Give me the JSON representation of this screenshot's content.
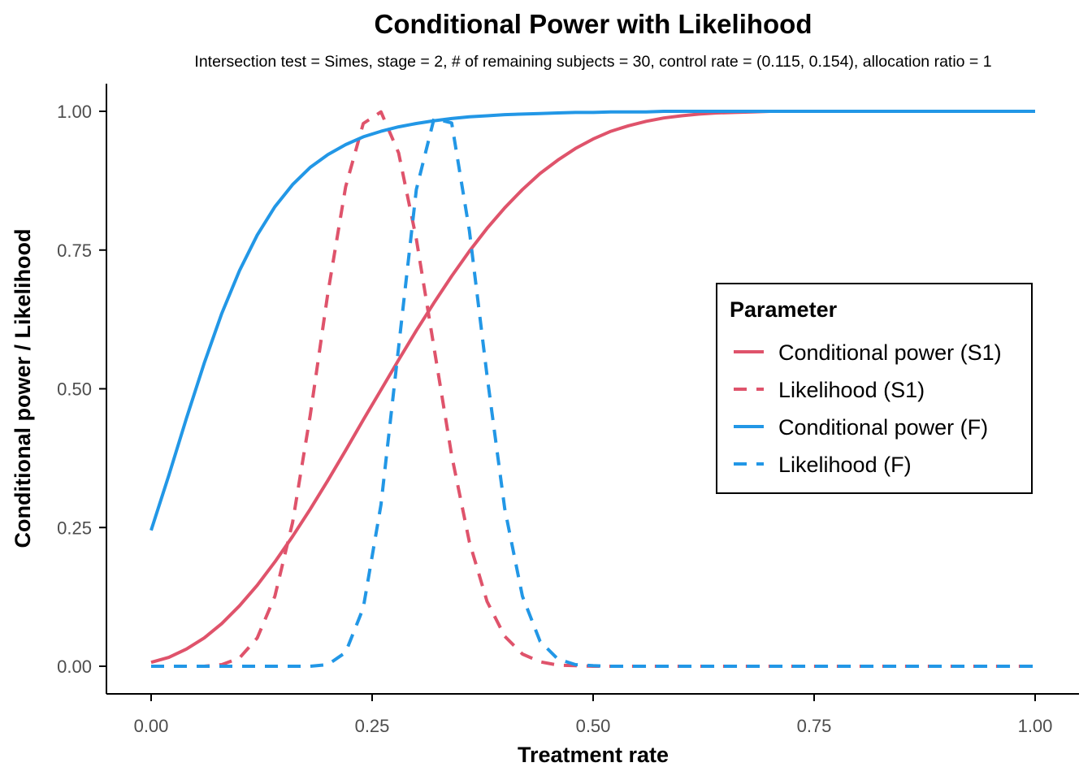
{
  "chart_data": {
    "type": "line",
    "title": "Conditional Power with Likelihood",
    "subtitle": "Intersection test = Simes, stage = 2, # of remaining subjects = 30, control rate = (0.115, 0.154), allocation ratio = 1",
    "xlabel": "Treatment rate",
    "ylabel": "Conditional power / Likelihood",
    "xlim": [
      0,
      1
    ],
    "ylim": [
      0,
      1
    ],
    "x_ticks": [
      "0.00",
      "0.25",
      "0.50",
      "0.75",
      "1.00"
    ],
    "y_ticks": [
      "0.00",
      "0.25",
      "0.50",
      "0.75",
      "1.00"
    ],
    "grid": false,
    "legend": {
      "title": "Parameter",
      "position": "right"
    },
    "x": [
      0.0,
      0.02,
      0.04,
      0.06,
      0.08,
      0.1,
      0.12,
      0.14,
      0.16,
      0.18,
      0.2,
      0.22,
      0.24,
      0.26,
      0.28,
      0.3,
      0.32,
      0.34,
      0.36,
      0.38,
      0.4,
      0.42,
      0.44,
      0.46,
      0.48,
      0.5,
      0.52,
      0.54,
      0.56,
      0.58,
      0.6,
      0.62,
      0.64,
      0.66,
      0.68,
      0.7,
      0.72,
      0.74,
      0.76,
      0.78,
      0.8,
      0.82,
      0.84,
      0.86,
      0.88,
      0.9,
      0.92,
      0.94,
      0.96,
      0.98,
      1.0
    ],
    "series": [
      {
        "name": "Conditional power (S1)",
        "color": "#DF536B",
        "dash": "solid",
        "values": [
          0.007,
          0.016,
          0.031,
          0.051,
          0.077,
          0.109,
          0.146,
          0.188,
          0.234,
          0.283,
          0.335,
          0.389,
          0.444,
          0.498,
          0.552,
          0.605,
          0.655,
          0.703,
          0.748,
          0.789,
          0.826,
          0.859,
          0.888,
          0.912,
          0.933,
          0.95,
          0.964,
          0.974,
          0.982,
          0.988,
          0.992,
          0.995,
          0.997,
          0.998,
          0.999,
          1.0,
          1.0,
          1.0,
          1.0,
          1.0,
          1.0,
          1.0,
          1.0,
          1.0,
          1.0,
          1.0,
          1.0,
          1.0,
          1.0,
          1.0,
          1.0
        ]
      },
      {
        "name": "Likelihood (S1)",
        "color": "#DF536B",
        "dash": "dashed",
        "values": [
          0.0,
          0.0,
          0.0,
          0.0,
          0.003,
          0.015,
          0.051,
          0.126,
          0.259,
          0.452,
          0.673,
          0.864,
          0.978,
          0.999,
          0.925,
          0.77,
          0.574,
          0.38,
          0.224,
          0.117,
          0.054,
          0.022,
          0.008,
          0.002,
          0.001,
          0.0,
          0.0,
          0.0,
          0.0,
          0.0,
          0.0,
          0.0,
          0.0,
          0.0,
          0.0,
          0.0,
          0.0,
          0.0,
          0.0,
          0.0,
          0.0,
          0.0,
          0.0,
          0.0,
          0.0,
          0.0,
          0.0,
          0.0,
          0.0,
          0.0,
          0.0
        ]
      },
      {
        "name": "Conditional power (F)",
        "color": "#2297E6",
        "dash": "solid",
        "values": [
          0.245,
          0.344,
          0.447,
          0.546,
          0.636,
          0.713,
          0.777,
          0.828,
          0.868,
          0.899,
          0.922,
          0.94,
          0.954,
          0.964,
          0.972,
          0.978,
          0.983,
          0.987,
          0.99,
          0.992,
          0.994,
          0.995,
          0.996,
          0.997,
          0.998,
          0.998,
          0.999,
          0.999,
          0.999,
          1.0,
          1.0,
          1.0,
          1.0,
          1.0,
          1.0,
          1.0,
          1.0,
          1.0,
          1.0,
          1.0,
          1.0,
          1.0,
          1.0,
          1.0,
          1.0,
          1.0,
          1.0,
          1.0,
          1.0,
          1.0,
          1.0
        ]
      },
      {
        "name": "Likelihood (F)",
        "color": "#2297E6",
        "dash": "dashed",
        "values": [
          0.0,
          0.0,
          0.0,
          0.0,
          0.0,
          0.0,
          0.0,
          0.0,
          0.0,
          0.0,
          0.003,
          0.025,
          0.105,
          0.291,
          0.575,
          0.859,
          0.987,
          0.979,
          0.785,
          0.524,
          0.284,
          0.126,
          0.045,
          0.013,
          0.003,
          0.001,
          0.0,
          0.0,
          0.0,
          0.0,
          0.0,
          0.0,
          0.0,
          0.0,
          0.0,
          0.0,
          0.0,
          0.0,
          0.0,
          0.0,
          0.0,
          0.0,
          0.0,
          0.0,
          0.0,
          0.0,
          0.0,
          0.0,
          0.0,
          0.0,
          0.0
        ]
      }
    ]
  }
}
